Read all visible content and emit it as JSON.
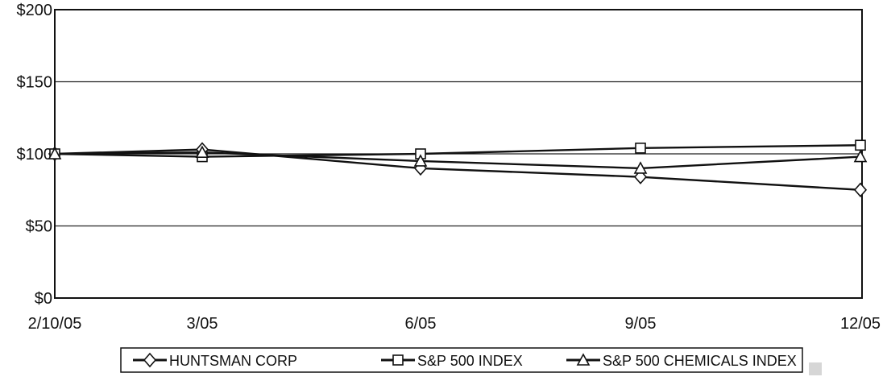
{
  "chart_data": {
    "type": "line",
    "title": "",
    "xlabel": "",
    "ylabel": "",
    "categories": [
      "2/10/05",
      "3/05",
      "6/05",
      "9/05",
      "12/05"
    ],
    "x_axis_tick_labels": [
      "2/10/05",
      "3/05",
      "6/05",
      "9/05",
      "12/05"
    ],
    "y_axis_tick_labels": [
      "$0",
      "$50",
      "$100",
      "$150",
      "$200"
    ],
    "y_ticks": [
      0,
      50,
      100,
      150,
      200
    ],
    "ylim": [
      0,
      200
    ],
    "grid": true,
    "legend_position": "bottom",
    "series": [
      {
        "name": "HUNTSMAN CORP",
        "marker": "diamond",
        "values": [
          100,
          103,
          90,
          84,
          75
        ]
      },
      {
        "name": "S&P 500 INDEX",
        "marker": "square",
        "values": [
          100,
          98,
          100,
          104,
          106
        ]
      },
      {
        "name": "S&P 500 CHEMICALS INDEX",
        "marker": "triangle",
        "values": [
          100,
          101,
          95,
          90,
          98
        ]
      }
    ]
  }
}
